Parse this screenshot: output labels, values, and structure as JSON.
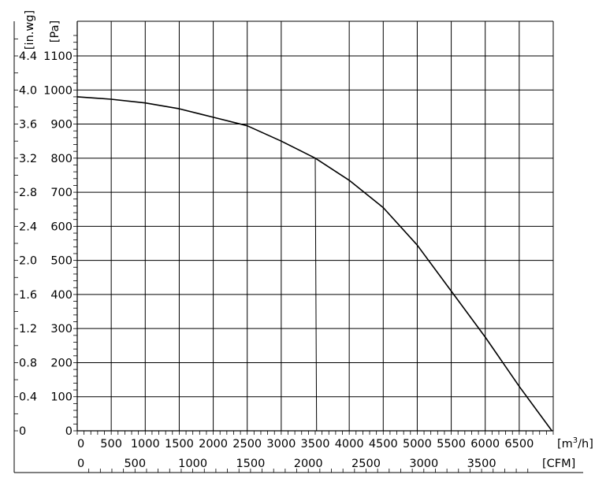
{
  "chart_data": {
    "type": "line",
    "title": "",
    "grid": true,
    "xlabel": "[m³/h]",
    "xlabel_parts": {
      "base": "[m",
      "sup": "3",
      "tail": "/h]"
    },
    "x_unit": "m³/h",
    "xlim": [
      0,
      7000
    ],
    "x_tick_labels": [
      "0",
      "500",
      "1000",
      "1500",
      "2000",
      "2500",
      "3000",
      "3500",
      "4000",
      "4500",
      "5000",
      "5500",
      "6000",
      "6500"
    ],
    "x2label": "[CFM]",
    "x2_unit": "CFM",
    "x2_tick_labels": [
      "0",
      "500",
      "1000",
      "1500",
      "2000",
      "2500",
      "3000",
      "3500"
    ],
    "ylabel": "[Pa]",
    "y_unit": "Pa",
    "ylim": [
      0,
      1100
    ],
    "y_tick_labels": [
      "0",
      "100",
      "200",
      "300",
      "400",
      "500",
      "600",
      "700",
      "800",
      "900",
      "1000",
      "1100"
    ],
    "y2label": "[in.wg]",
    "y2_unit": "in.wg",
    "y2_tick_labels": [
      "0",
      "0.4",
      "0.8",
      "1.2",
      "1.6",
      "2.0",
      "2.4",
      "2.8",
      "3.2",
      "3.6",
      "4.0",
      "4.4"
    ],
    "series": [
      {
        "x": [
          0,
          500,
          1000,
          1500,
          2000,
          2500,
          3000,
          3500,
          4000,
          4500,
          5000,
          5500,
          6000,
          6500,
          6980
        ],
        "y": [
          980,
          973,
          962,
          945,
          920,
          895,
          850,
          800,
          735,
          655,
          545,
          410,
          275,
          130,
          0
        ]
      }
    ],
    "extra_line": {
      "x": [
        3500,
        3520
      ],
      "y": [
        800,
        0
      ]
    }
  }
}
